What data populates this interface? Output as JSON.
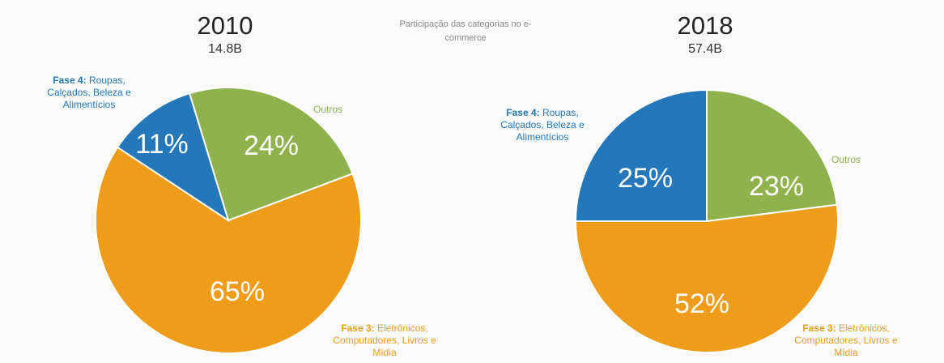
{
  "caption": "Participação das categorias no e-commerce",
  "chart_data": [
    {
      "type": "pie",
      "title": "2010",
      "subtitle": "14.8B",
      "categories": [
        "Outros",
        "Fase 3: Eletrônicos, Computadores, Livros e Mídia",
        "Fase 4: Roupas, Calçados, Beleza e Alimentícios"
      ],
      "values": [
        24,
        65,
        11
      ],
      "value_labels": [
        "24%",
        "65%",
        "11%"
      ],
      "colors": [
        "#8fb24c",
        "#ef9c1a",
        "#2477b8"
      ]
    },
    {
      "type": "pie",
      "title": "2018",
      "subtitle": "57.4B",
      "categories": [
        "Outros",
        "Fase 3: Eletrônicos, Computadores, Livros e Mídia",
        "Fase 4: Roupas, Calçados, Beleza e Alimentícios"
      ],
      "values": [
        23,
        52,
        25
      ],
      "value_labels": [
        "23%",
        "52%",
        "25%"
      ],
      "colors": [
        "#8fb24c",
        "#ef9c1a",
        "#2477b8"
      ]
    }
  ]
}
